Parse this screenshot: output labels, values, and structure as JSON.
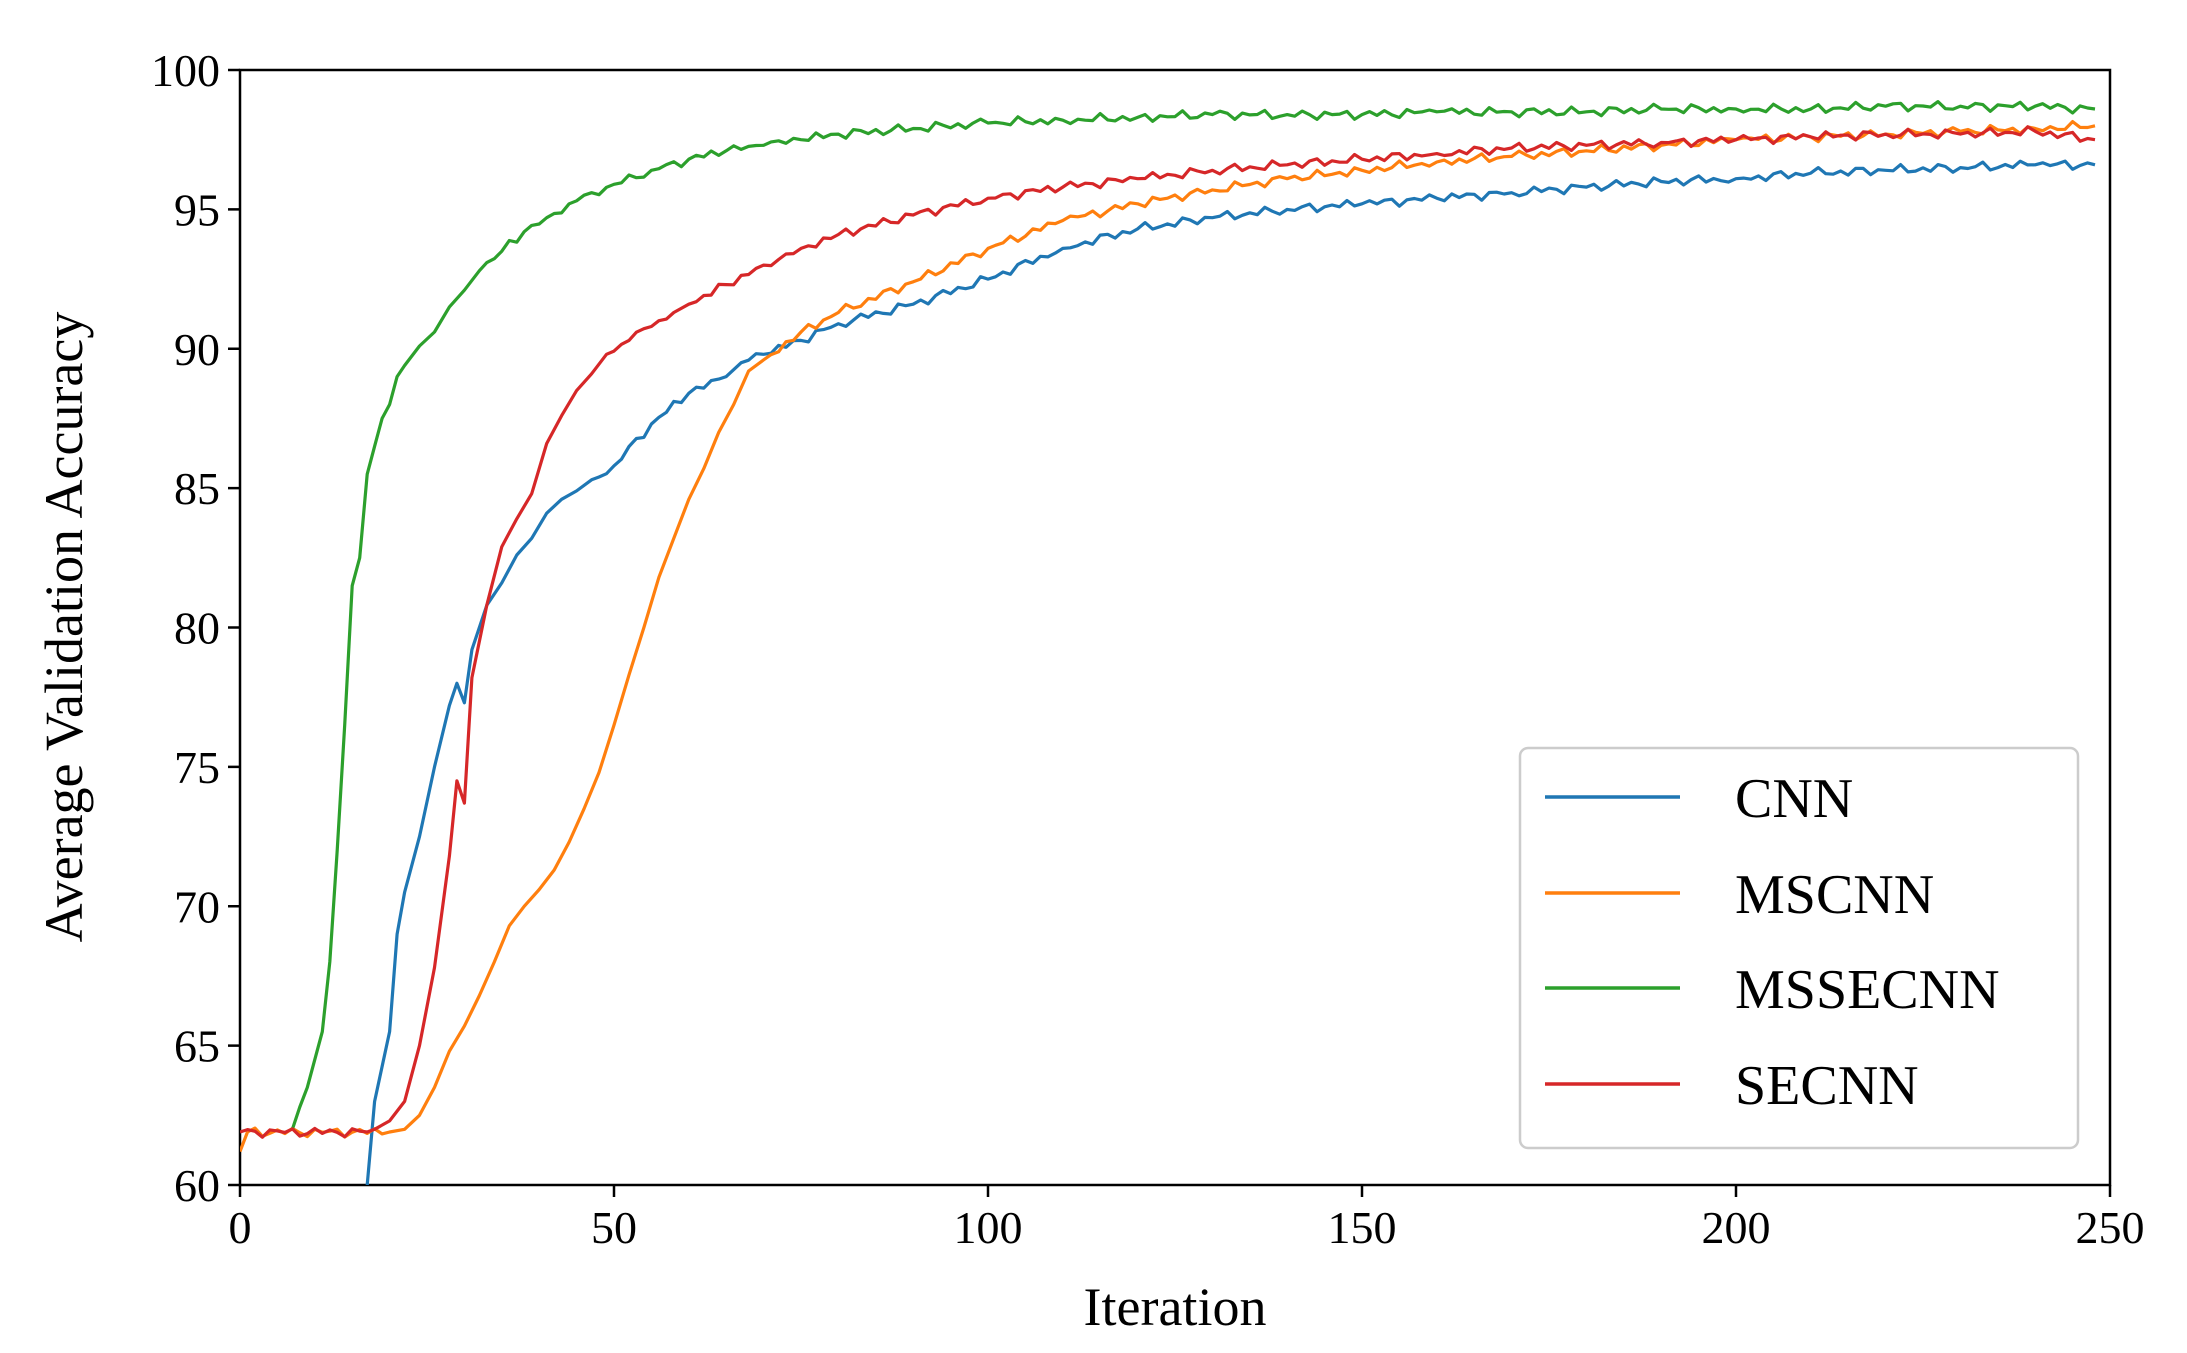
{
  "chart_data": {
    "type": "line",
    "title": "",
    "xlabel": "Iteration",
    "ylabel": "Average Validation Accuracy",
    "xlim": [
      0,
      250
    ],
    "ylim": [
      60,
      100
    ],
    "xticks": [
      0,
      50,
      100,
      150,
      200,
      250
    ],
    "yticks": [
      60,
      65,
      70,
      75,
      80,
      85,
      90,
      95,
      100
    ],
    "legend_position": "lower-right",
    "grid": false,
    "series": [
      {
        "name": "CNN",
        "color": "#1f77b4",
        "x": [
          17,
          18,
          20,
          21,
          22,
          24,
          26,
          28,
          29,
          30,
          31,
          33,
          35,
          37,
          39,
          41,
          43,
          45,
          47,
          50,
          55,
          60,
          65,
          67,
          70,
          75,
          80,
          90,
          100,
          110,
          120,
          130,
          140,
          150,
          160,
          170,
          180,
          190,
          200,
          210,
          220,
          230,
          240,
          248
        ],
        "values": [
          60,
          63,
          65.5,
          69,
          70.5,
          72.5,
          75,
          77.2,
          78,
          77.3,
          79.2,
          80.8,
          81.6,
          82.6,
          83.2,
          84.1,
          84.6,
          84.9,
          85.3,
          85.8,
          87.3,
          88.4,
          89.0,
          89.5,
          89.8,
          90.3,
          90.9,
          91.6,
          92.5,
          93.6,
          94.3,
          94.7,
          95.0,
          95.2,
          95.4,
          95.6,
          95.8,
          96.0,
          96.1,
          96.3,
          96.4,
          96.5,
          96.6,
          96.6
        ]
      },
      {
        "name": "MSCNN",
        "color": "#ff7f0e",
        "x": [
          0,
          1,
          20,
          22,
          24,
          26,
          28,
          30,
          32,
          34,
          36,
          38,
          40,
          42,
          44,
          46,
          48,
          50,
          52,
          54,
          56,
          58,
          60,
          62,
          64,
          66,
          68,
          70,
          75,
          80,
          90,
          100,
          110,
          120,
          130,
          140,
          150,
          160,
          170,
          180,
          190,
          200,
          210,
          220,
          230,
          240,
          248
        ],
        "values": [
          61.2,
          61.9,
          61.9,
          62.0,
          62.5,
          63.5,
          64.8,
          65.7,
          66.8,
          68.0,
          69.3,
          70.0,
          70.6,
          71.3,
          72.3,
          73.5,
          74.8,
          76.5,
          78.3,
          80.0,
          81.8,
          83.2,
          84.6,
          85.7,
          87.0,
          88.0,
          89.2,
          89.6,
          90.6,
          91.3,
          92.4,
          93.6,
          94.6,
          95.2,
          95.7,
          96.1,
          96.4,
          96.7,
          96.9,
          97.1,
          97.3,
          97.5,
          97.6,
          97.7,
          97.8,
          97.9,
          98.0
        ]
      },
      {
        "name": "MSSECNN",
        "color": "#2ca02c",
        "x": [
          7,
          8,
          9,
          10,
          11,
          12,
          13,
          14,
          15,
          16,
          17,
          18,
          19,
          20,
          21,
          22,
          24,
          26,
          28,
          30,
          32,
          35,
          38,
          41,
          44,
          47,
          50,
          55,
          60,
          65,
          70,
          75,
          80,
          90,
          100,
          110,
          120,
          130,
          140,
          150,
          160,
          170,
          180,
          190,
          200,
          210,
          220,
          230,
          240,
          248
        ],
        "values": [
          62.0,
          62.8,
          63.5,
          64.5,
          65.5,
          68,
          72,
          76.5,
          81.5,
          82.5,
          85.5,
          86.5,
          87.5,
          88.0,
          89.0,
          89.4,
          90.1,
          90.6,
          91.5,
          92.1,
          92.8,
          93.5,
          94.2,
          94.7,
          95.2,
          95.6,
          95.9,
          96.4,
          96.8,
          97.1,
          97.3,
          97.5,
          97.7,
          97.9,
          98.1,
          98.2,
          98.3,
          98.4,
          98.4,
          98.4,
          98.5,
          98.5,
          98.5,
          98.6,
          98.6,
          98.6,
          98.7,
          98.7,
          98.7,
          98.6
        ]
      },
      {
        "name": "SECNN",
        "color": "#d62728",
        "x": [
          0,
          17,
          18,
          20,
          22,
          24,
          26,
          28,
          29,
          30,
          31,
          33,
          35,
          37,
          39,
          41,
          43,
          45,
          47,
          49,
          52,
          55,
          58,
          60,
          65,
          70,
          75,
          80,
          90,
          100,
          110,
          120,
          130,
          140,
          150,
          160,
          170,
          180,
          190,
          200,
          210,
          220,
          230,
          240,
          248
        ],
        "values": [
          61.9,
          61.9,
          62.0,
          62.3,
          63.0,
          65.0,
          67.8,
          71.8,
          74.5,
          73.7,
          78.2,
          80.8,
          82.9,
          83.9,
          84.8,
          86.6,
          87.6,
          88.5,
          89.1,
          89.8,
          90.3,
          90.8,
          91.3,
          91.6,
          92.3,
          93.0,
          93.6,
          94.1,
          94.8,
          95.4,
          95.8,
          96.1,
          96.4,
          96.6,
          96.8,
          97.0,
          97.2,
          97.3,
          97.4,
          97.5,
          97.6,
          97.7,
          97.7,
          97.8,
          97.5
        ]
      }
    ]
  }
}
